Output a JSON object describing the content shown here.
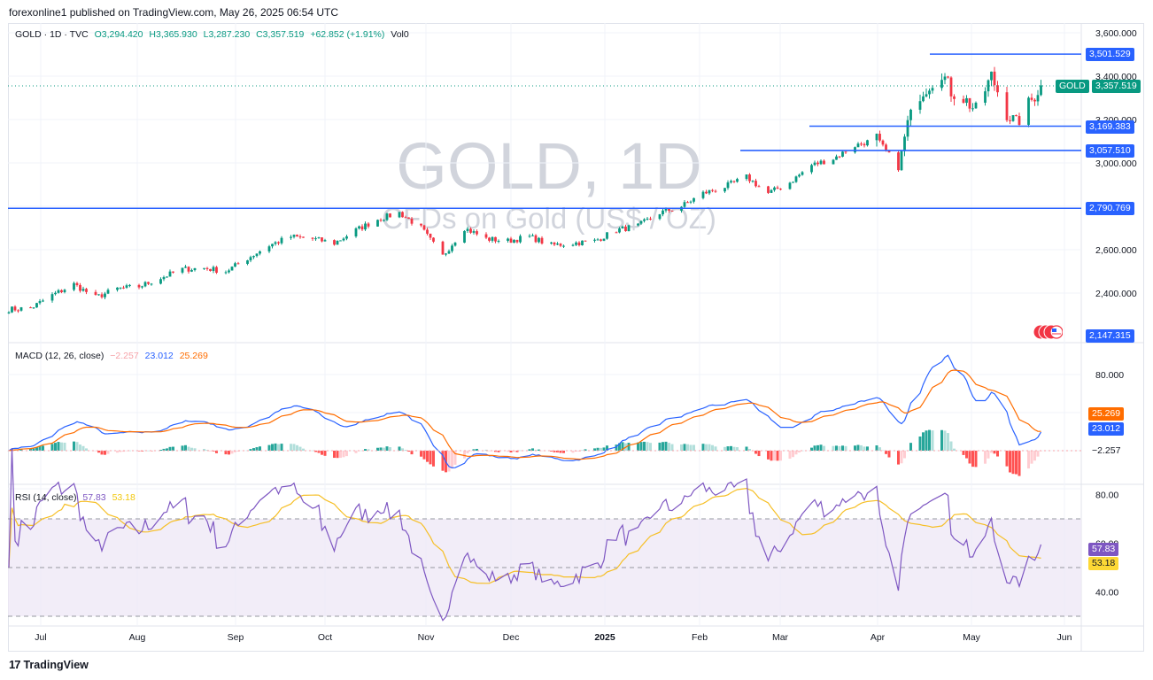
{
  "header": {
    "published": "forexonline1 published on TradingView.com, May 26, 2025 06:54 UTC"
  },
  "main_legend": {
    "symbol": "GOLD · 1D · TVC",
    "open": "O3,294.420",
    "high": "H3,365.930",
    "low": "L3,287.230",
    "close": "C3,357.519",
    "change": "+62.852 (+1.91%)",
    "volume": "Vol0"
  },
  "watermark": {
    "title": "GOLD, 1D",
    "subtitle": "CFDs on Gold (US$ / OZ)"
  },
  "price_axis": {
    "ticks": [
      "3,600.000",
      "3,400.000",
      "3,200.000",
      "3,000.000",
      "2,600.000",
      "2,400.000"
    ],
    "level_labels": [
      "3,501.529",
      "3,169.383",
      "3,057.510",
      "2,790.769",
      "2,147.315"
    ],
    "current_symbol": "GOLD",
    "current_price": "3,357.519"
  },
  "macd_legend": {
    "name": "MACD (12, 26, close)",
    "hist": "−2.257",
    "macd": "23.012",
    "signal": "25.269"
  },
  "macd_axis": {
    "tick": "80.000",
    "signal_label": "25.269",
    "macd_label": "23.012",
    "hist_label": "−2.257"
  },
  "rsi_legend": {
    "name": "RSI (14, close)",
    "rsi": "57.83",
    "ma": "53.18"
  },
  "rsi_axis": {
    "ticks": [
      "80.00",
      "60.00",
      "40.00"
    ],
    "rsi_label": "57.83",
    "ma_label": "53.18"
  },
  "time_axis": {
    "labels": [
      "Jul",
      "Aug",
      "Sep",
      "Oct",
      "Nov",
      "Dec",
      "2025",
      "Feb",
      "Mar",
      "Apr",
      "May",
      "Jun"
    ]
  },
  "footer": {
    "brand": "TradingView"
  },
  "colors": {
    "up": "#089981",
    "down": "#f23645",
    "level_line": "#2962ff",
    "macd_line": "#2962ff",
    "signal_line": "#ff6d00",
    "rsi_line": "#7e57c2",
    "rsi_ma": "#fdd835",
    "rsi_band": "#ede7f6"
  },
  "chart_data": [
    {
      "type": "candlestick",
      "title": "GOLD · 1D · TVC",
      "y_range": [
        2250,
        3650
      ],
      "x": [
        "Jul",
        "Aug",
        "Sep",
        "Oct",
        "Nov",
        "Dec",
        "2025",
        "Feb",
        "Mar",
        "Apr",
        "May",
        "Jun"
      ],
      "horizontal_levels": [
        3501.529,
        3169.383,
        3057.51,
        2790.769
      ],
      "approx_close_path": [
        [
          "2024-06-24",
          2325
        ],
        [
          "2024-07-01",
          2330
        ],
        [
          "2024-07-08",
          2390
        ],
        [
          "2024-07-15",
          2440
        ],
        [
          "2024-07-22",
          2380
        ],
        [
          "2024-07-29",
          2420
        ],
        [
          "2024-08-05",
          2430
        ],
        [
          "2024-08-12",
          2470
        ],
        [
          "2024-08-19",
          2510
        ],
        [
          "2024-08-26",
          2515
        ],
        [
          "2024-09-02",
          2500
        ],
        [
          "2024-09-09",
          2560
        ],
        [
          "2024-09-16",
          2620
        ],
        [
          "2024-09-23",
          2660
        ],
        [
          "2024-09-30",
          2650
        ],
        [
          "2024-10-07",
          2630
        ],
        [
          "2024-10-14",
          2690
        ],
        [
          "2024-10-21",
          2740
        ],
        [
          "2024-10-28",
          2770
        ],
        [
          "2024-11-04",
          2700
        ],
        [
          "2024-11-11",
          2570
        ],
        [
          "2024-11-18",
          2700
        ],
        [
          "2024-11-25",
          2650
        ],
        [
          "2024-12-02",
          2640
        ],
        [
          "2024-12-09",
          2660
        ],
        [
          "2024-12-16",
          2620
        ],
        [
          "2024-12-23",
          2630
        ],
        [
          "2024-12-30",
          2640
        ],
        [
          "2025-01-06",
          2690
        ],
        [
          "2025-01-13",
          2710
        ],
        [
          "2025-01-20",
          2770
        ],
        [
          "2025-01-27",
          2800
        ],
        [
          "2025-02-03",
          2860
        ],
        [
          "2025-02-10",
          2890
        ],
        [
          "2025-02-17",
          2935
        ],
        [
          "2025-02-24",
          2860
        ],
        [
          "2025-03-03",
          2910
        ],
        [
          "2025-03-10",
          2990
        ],
        [
          "2025-03-17",
          3020
        ],
        [
          "2025-03-24",
          3080
        ],
        [
          "2025-03-31",
          3110
        ],
        [
          "2025-04-07",
          2980
        ],
        [
          "2025-04-10",
          3180
        ],
        [
          "2025-04-14",
          3320
        ],
        [
          "2025-04-21",
          3420
        ],
        [
          "2025-04-24",
          3330
        ],
        [
          "2025-04-28",
          3300
        ],
        [
          "2025-05-02",
          3240
        ],
        [
          "2025-05-07",
          3400
        ],
        [
          "2025-05-12",
          3230
        ],
        [
          "2025-05-15",
          3180
        ],
        [
          "2025-05-20",
          3290
        ],
        [
          "2025-05-23",
          3357.519
        ]
      ]
    },
    {
      "type": "line",
      "title": "MACD (12, 26, close)",
      "last_values": {
        "histogram": -2.257,
        "macd": 23.012,
        "signal": 25.269
      },
      "y_ticks": [
        80
      ]
    },
    {
      "type": "line",
      "title": "RSI (14, close)",
      "last_values": {
        "rsi": 57.83,
        "ma": 53.18
      },
      "y_ticks": [
        80,
        60,
        40
      ],
      "band": [
        30,
        70
      ]
    }
  ]
}
